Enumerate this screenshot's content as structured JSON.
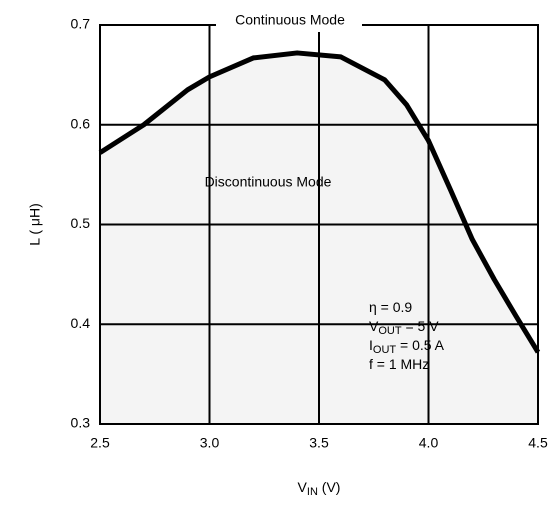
{
  "chart_data": {
    "type": "line",
    "x_label": {
      "base": "V",
      "sub": "IN",
      "rest": " (V)"
    },
    "y_label": "L ( μH)",
    "series": [
      {
        "color": "#000000",
        "x": [
          2.5,
          2.7,
          2.9,
          3.0,
          3.2,
          3.4,
          3.6,
          3.8,
          3.9,
          4.0,
          4.1,
          4.2,
          4.3,
          4.4,
          4.5
        ],
        "values": [
          0.572,
          0.6,
          0.635,
          0.648,
          0.667,
          0.672,
          0.668,
          0.645,
          0.62,
          0.584,
          0.535,
          0.485,
          0.445,
          0.408,
          0.372
        ]
      }
    ],
    "xlim": [
      2.5,
      4.5
    ],
    "xticks": [
      2.5,
      {
        "value": 3,
        "label": "3.0"
      },
      3.5,
      {
        "value": 4,
        "label": "4.0"
      },
      4.5
    ],
    "ylim": [
      0.3,
      0.7
    ],
    "yticks": [
      0.3,
      0.4,
      0.5,
      0.6,
      0.7
    ],
    "grid": true,
    "region_labels": [
      "Continuous Mode",
      "Discontinuous Mode"
    ],
    "annotations": [
      {
        "base": "η = 0.9"
      },
      {
        "base": "V",
        "sub": "OUT",
        "rest": " = 5 V"
      },
      {
        "base": "I",
        "sub": "OUT",
        "rest": " = 0.5 A"
      },
      {
        "base": "f = 1 MHz"
      }
    ]
  }
}
